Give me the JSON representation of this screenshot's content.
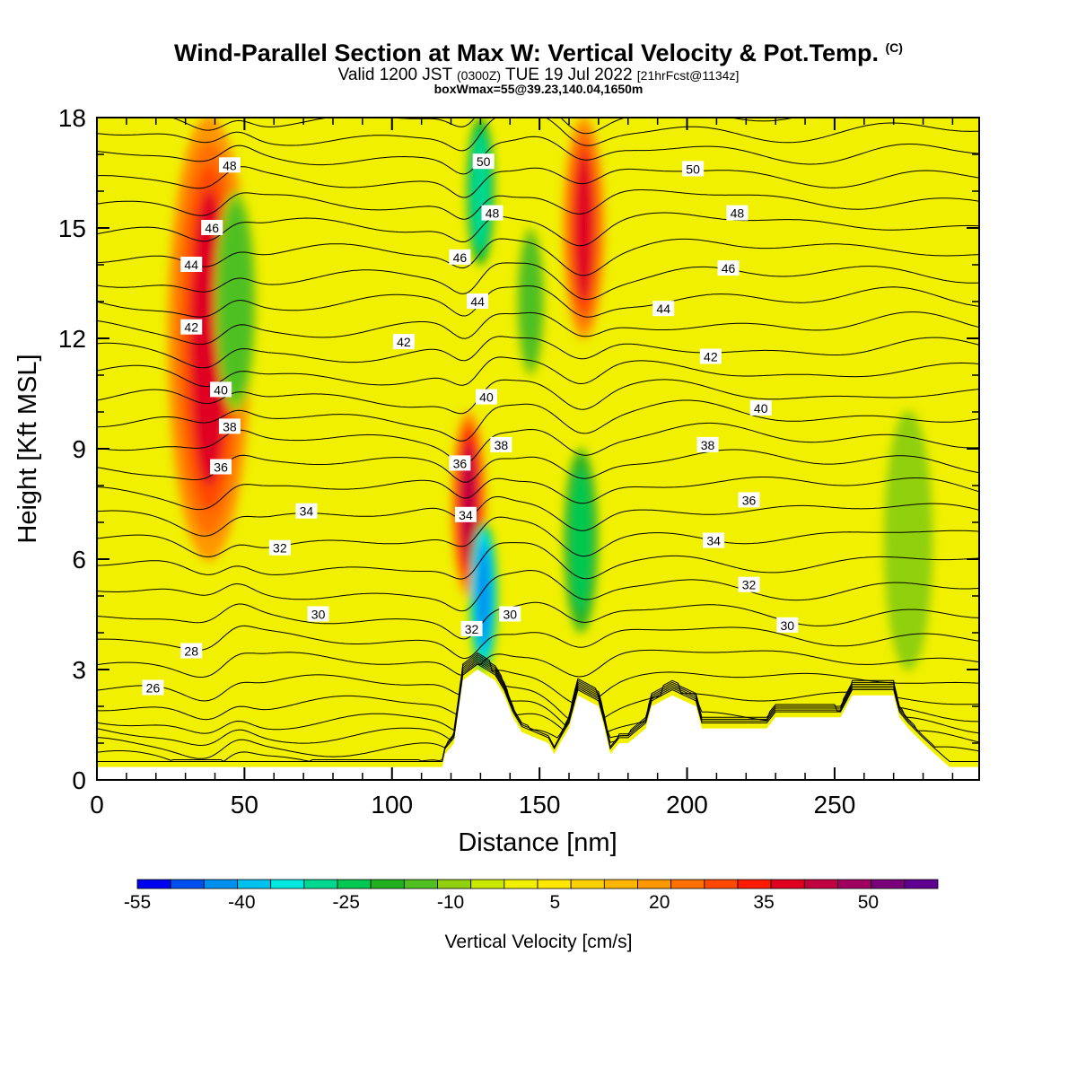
{
  "header": {
    "title": "Wind-Parallel Section at Max W: Vertical Velocity & Pot.Temp.",
    "title_suffix": "(C)",
    "valid_main": "Valid 1200 JST",
    "valid_utc": "(0300Z)",
    "valid_date": "TUE 19 Jul 2022",
    "forecast_note": "[21hrFcst@1134z]",
    "box_info": "boxWmax=55@39.23,140.04,1650m"
  },
  "chart_data": {
    "type": "heatmap",
    "xlabel": "Distance [nm]",
    "ylabel": "Height [Kft MSL]",
    "xlim": [
      0,
      299
    ],
    "ylim": [
      0,
      18
    ],
    "xticks": [
      0,
      50,
      100,
      150,
      200,
      250
    ],
    "yticks": [
      0,
      3,
      6,
      9,
      12,
      15,
      18
    ],
    "colorbar": {
      "label": "Vertical Velocity [cm/s]",
      "levels": [
        -55,
        -50,
        -45,
        -40,
        -35,
        -30,
        -25,
        -20,
        -15,
        -10,
        -5,
        0,
        5,
        10,
        15,
        20,
        25,
        30,
        35,
        40,
        45,
        50,
        55,
        60
      ],
      "tick_labels": [
        "-55",
        "-40",
        "-25",
        "-10",
        "5",
        "20",
        "35",
        "50"
      ],
      "colors": [
        "#0000f0",
        "#0050f0",
        "#0090f0",
        "#00c0f0",
        "#00e8e0",
        "#00d890",
        "#00c850",
        "#20b020",
        "#50c020",
        "#90d010",
        "#c8e800",
        "#f0f000",
        "#ffe800",
        "#ffd000",
        "#ffb400",
        "#ff9800",
        "#ff7000",
        "#ff4800",
        "#ff1a00",
        "#e00020",
        "#c00040",
        "#a00060",
        "#780078",
        "#600090"
      ]
    },
    "vertical_velocity_features": [
      {
        "sign": "updraft",
        "x": 38,
        "z_range": [
          6,
          18
        ],
        "peak_cm_s": 40
      },
      {
        "sign": "downdraft",
        "x": 47,
        "z_range": [
          10,
          16
        ],
        "peak_cm_s": -15
      },
      {
        "sign": "updraft",
        "x": 126,
        "z_range": [
          5,
          10
        ],
        "peak_cm_s": 45
      },
      {
        "sign": "downdraft",
        "x": 131,
        "z_range": [
          3,
          7
        ],
        "peak_cm_s": -45
      },
      {
        "sign": "downdraft",
        "x": 130,
        "z_range": [
          14,
          18
        ],
        "peak_cm_s": -30
      },
      {
        "sign": "downdraft",
        "x": 147,
        "z_range": [
          11,
          15
        ],
        "peak_cm_s": -15
      },
      {
        "sign": "updraft",
        "x": 165,
        "z_range": [
          12,
          18
        ],
        "peak_cm_s": 40
      },
      {
        "sign": "downdraft",
        "x": 164,
        "z_range": [
          4,
          9
        ],
        "peak_cm_s": -25
      },
      {
        "sign": "downdraft",
        "x": 275,
        "z_range": [
          3,
          10
        ],
        "peak_cm_s": -10
      }
    ],
    "terrain_kft": [
      {
        "x": 0,
        "z": 0.35
      },
      {
        "x": 117,
        "z": 0.35
      },
      {
        "x": 118,
        "z": 0.7
      },
      {
        "x": 121,
        "z": 1.0
      },
      {
        "x": 124,
        "z": 2.7
      },
      {
        "x": 129,
        "z": 3.0
      },
      {
        "x": 135,
        "z": 2.7
      },
      {
        "x": 138,
        "z": 2.3
      },
      {
        "x": 141,
        "z": 1.7
      },
      {
        "x": 144,
        "z": 1.3
      },
      {
        "x": 153,
        "z": 1.0
      },
      {
        "x": 155,
        "z": 0.7
      },
      {
        "x": 157,
        "z": 1.0
      },
      {
        "x": 160,
        "z": 1.4
      },
      {
        "x": 163,
        "z": 2.3
      },
      {
        "x": 170,
        "z": 2.0
      },
      {
        "x": 172,
        "z": 1.4
      },
      {
        "x": 174,
        "z": 0.7
      },
      {
        "x": 177,
        "z": 1.0
      },
      {
        "x": 180,
        "z": 1.0
      },
      {
        "x": 186,
        "z": 1.4
      },
      {
        "x": 188,
        "z": 2.0
      },
      {
        "x": 195,
        "z": 2.3
      },
      {
        "x": 203,
        "z": 2.0
      },
      {
        "x": 205,
        "z": 1.4
      },
      {
        "x": 227,
        "z": 1.4
      },
      {
        "x": 230,
        "z": 1.7
      },
      {
        "x": 252,
        "z": 1.7
      },
      {
        "x": 256,
        "z": 2.3
      },
      {
        "x": 270,
        "z": 2.3
      },
      {
        "x": 272,
        "z": 1.7
      },
      {
        "x": 275,
        "z": 1.4
      },
      {
        "x": 280,
        "z": 1.0
      },
      {
        "x": 284,
        "z": 0.7
      },
      {
        "x": 289,
        "z": 0.35
      },
      {
        "x": 299,
        "z": 0.35
      }
    ],
    "contour_labels": [
      {
        "text": "48",
        "x": 45,
        "z": 16.7
      },
      {
        "text": "46",
        "x": 39,
        "z": 15.0
      },
      {
        "text": "44",
        "x": 32,
        "z": 14.0
      },
      {
        "text": "42",
        "x": 32,
        "z": 12.3
      },
      {
        "text": "40",
        "x": 42,
        "z": 10.6
      },
      {
        "text": "38",
        "x": 45,
        "z": 9.6
      },
      {
        "text": "36",
        "x": 42,
        "z": 8.5
      },
      {
        "text": "34",
        "x": 71,
        "z": 7.3
      },
      {
        "text": "32",
        "x": 62,
        "z": 6.3
      },
      {
        "text": "30",
        "x": 75,
        "z": 4.5
      },
      {
        "text": "28",
        "x": 32,
        "z": 3.5
      },
      {
        "text": "26",
        "x": 19,
        "z": 2.5
      },
      {
        "text": "42",
        "x": 104,
        "z": 11.9
      },
      {
        "text": "50",
        "x": 131,
        "z": 16.8
      },
      {
        "text": "48",
        "x": 134,
        "z": 15.4
      },
      {
        "text": "46",
        "x": 123,
        "z": 14.2
      },
      {
        "text": "44",
        "x": 129,
        "z": 13.0
      },
      {
        "text": "40",
        "x": 132,
        "z": 10.4
      },
      {
        "text": "38",
        "x": 137,
        "z": 9.1
      },
      {
        "text": "36",
        "x": 123,
        "z": 8.6
      },
      {
        "text": "34",
        "x": 125,
        "z": 7.2
      },
      {
        "text": "32",
        "x": 127,
        "z": 4.1
      },
      {
        "text": "30",
        "x": 140,
        "z": 4.5
      },
      {
        "text": "50",
        "x": 202,
        "z": 16.6
      },
      {
        "text": "48",
        "x": 217,
        "z": 15.4
      },
      {
        "text": "46",
        "x": 214,
        "z": 13.9
      },
      {
        "text": "44",
        "x": 192,
        "z": 12.8
      },
      {
        "text": "42",
        "x": 208,
        "z": 11.5
      },
      {
        "text": "40",
        "x": 225,
        "z": 10.1
      },
      {
        "text": "38",
        "x": 207,
        "z": 9.1
      },
      {
        "text": "36",
        "x": 221,
        "z": 7.6
      },
      {
        "text": "34",
        "x": 209,
        "z": 6.5
      },
      {
        "text": "32",
        "x": 221,
        "z": 5.3
      },
      {
        "text": "30",
        "x": 234,
        "z": 4.2
      }
    ],
    "isentropes": {
      "values_c": [
        22,
        23,
        24,
        25,
        26,
        27,
        28,
        29,
        30,
        31,
        32,
        33,
        34,
        35,
        36,
        37,
        38,
        39,
        40,
        41,
        42,
        43,
        44,
        45,
        46,
        47,
        48,
        49,
        50,
        51,
        52
      ],
      "base_height_kft": [
        0.2,
        0.55,
        0.9,
        1.25,
        1.6,
        2.05,
        2.6,
        3.2,
        3.8,
        4.4,
        5.1,
        5.8,
        6.5,
        7.2,
        7.9,
        8.55,
        9.2,
        9.8,
        10.4,
        11.0,
        11.6,
        12.25,
        12.95,
        13.6,
        14.3,
        15.0,
        15.65,
        16.3,
        16.95,
        17.5,
        18.0
      ]
    }
  }
}
